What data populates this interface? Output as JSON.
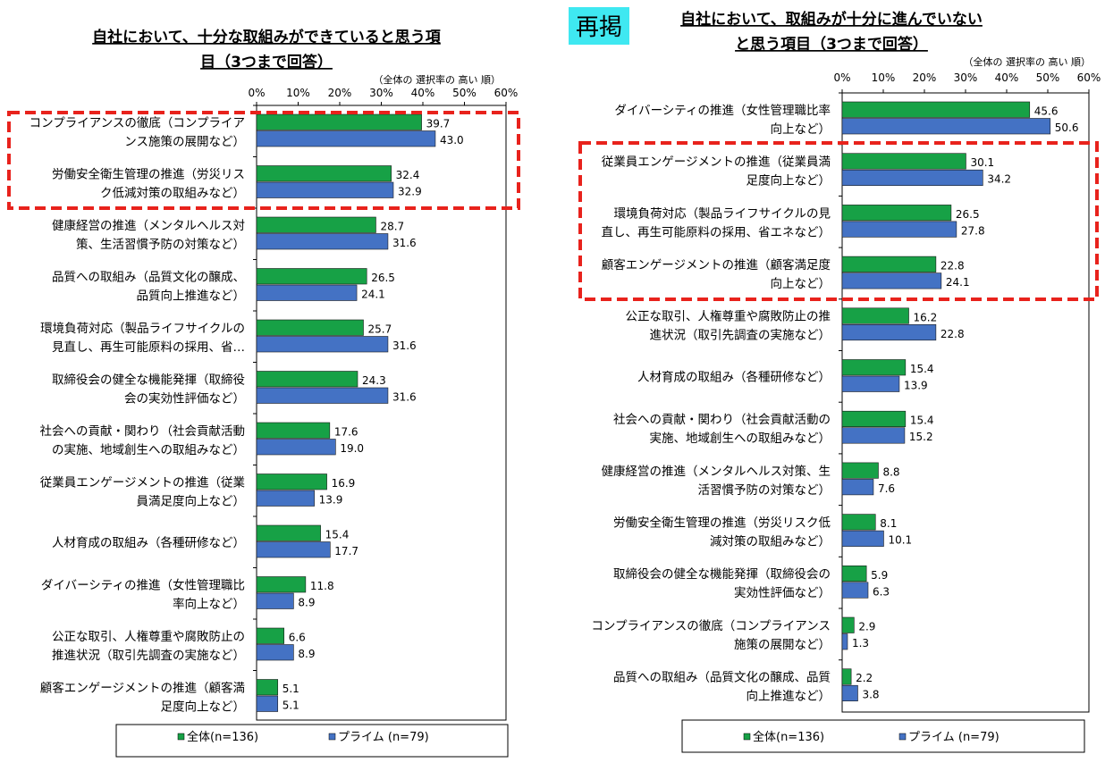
{
  "colors": {
    "all": "#17A146",
    "prime": "#4472C4",
    "highlight": "#E8221C",
    "badge_bg": "#3FE8F1"
  },
  "chart_data": [
    {
      "type": "bar",
      "orientation": "horizontal",
      "title_line1": "自社において、十分な取組みができていると思う項",
      "title_line2": "目（3つまで回答）",
      "note": "（全体の 選択率の 高い 順）",
      "xlim": [
        0,
        60
      ],
      "xticks": [
        "0%",
        "10%",
        "20%",
        "30%",
        "40%",
        "50%",
        "60%"
      ],
      "categories": [
        [
          "コンプライアンスの徹底（コンプライア",
          "ンス施策の展開など）"
        ],
        [
          "労働安全衛生管理の推進（労災リス",
          "ク低減対策の取組みなど）"
        ],
        [
          "健康経営の推進（メンタルヘルス対",
          "策、生活習慣予防の対策など）"
        ],
        [
          "品質への取組み（品質文化の醸成、",
          "品質向上推進など）"
        ],
        [
          "環境負荷対応（製品ライフサイクルの",
          "見直し、再生可能原料の採用、省…"
        ],
        [
          "取締役会の健全な機能発揮（取締役",
          "会の実効性評価など）"
        ],
        [
          "社会への貢献・関わり（社会貢献活動",
          "の実施、地域創生への取組みなど）"
        ],
        [
          "従業員エンゲージメントの推進（従業",
          "員満足度向上など）"
        ],
        [
          "人材育成の取組み（各種研修など）"
        ],
        [
          "ダイバーシティの推進（女性管理職比",
          "率向上など）"
        ],
        [
          "公正な取引、人権尊重や腐敗防止の",
          "推進状況（取引先調査の実施など）"
        ],
        [
          "顧客エンゲージメントの推進（顧客満",
          "足度向上など）"
        ]
      ],
      "series": [
        {
          "name": "全体(n=136)",
          "values": [
            39.7,
            32.4,
            28.7,
            26.5,
            25.7,
            24.3,
            17.6,
            16.9,
            15.4,
            11.8,
            6.6,
            5.1
          ],
          "labels": [
            "39.7",
            "32.4",
            "28.7",
            "26.5",
            "25.7",
            "24.3",
            "17.6",
            "16.9",
            "15.4",
            "11.8",
            "6.6",
            "5.1"
          ]
        },
        {
          "name": "プライム (n=79)",
          "values": [
            43.0,
            32.9,
            31.6,
            24.1,
            31.6,
            31.6,
            19.0,
            13.9,
            17.7,
            8.9,
            8.9,
            5.1
          ],
          "labels": [
            "43.0",
            "32.9",
            "31.6",
            "24.1",
            "31.6",
            "31.6",
            "19.0",
            "13.9",
            "17.7",
            "8.9",
            "8.9",
            "5.1"
          ]
        }
      ],
      "highlight_rows": [
        0,
        1
      ],
      "badge": ""
    },
    {
      "type": "bar",
      "orientation": "horizontal",
      "title_line1": "自社において、取組みが十分に進んでいない",
      "title_line2": "と思う項目（3つまで回答）",
      "note": "（全体の 選択率の 高い 順）",
      "xlim": [
        0,
        60
      ],
      "xticks": [
        "0%",
        "10%",
        "20%",
        "30%",
        "40%",
        "50%",
        "60%"
      ],
      "categories": [
        [
          "ダイバーシティの推進（女性管理職比率",
          "向上など）"
        ],
        [
          "従業員エンゲージメントの推進（従業員満",
          "足度向上など）"
        ],
        [
          "環境負荷対応（製品ライフサイクルの見",
          "直し、再生可能原料の採用、省エネなど）"
        ],
        [
          "顧客エンゲージメントの推進（顧客満足度",
          "向上など）"
        ],
        [
          "公正な取引、人権尊重や腐敗防止の推",
          "進状況（取引先調査の実施など）"
        ],
        [
          "人材育成の取組み（各種研修など）"
        ],
        [
          "社会への貢献・関わり（社会貢献活動の",
          "実施、地域創生への取組みなど）"
        ],
        [
          "健康経営の推進（メンタルヘルス対策、生",
          "活習慣予防の対策など）"
        ],
        [
          "労働安全衛生管理の推進（労災リスク低",
          "減対策の取組みなど）"
        ],
        [
          "取締役会の健全な機能発揮（取締役会の",
          "実効性評価など）"
        ],
        [
          "コンプライアンスの徹底（コンプライアンス",
          "施策の展開など）"
        ],
        [
          "品質への取組み（品質文化の醸成、品質",
          "向上推進など）"
        ]
      ],
      "series": [
        {
          "name": "全体(n=136)",
          "values": [
            45.6,
            30.1,
            26.5,
            22.8,
            16.2,
            15.4,
            15.4,
            8.8,
            8.1,
            5.9,
            2.9,
            2.2
          ],
          "labels": [
            "45.6",
            "30.1",
            "26.5",
            "22.8",
            "16.2",
            "15.4",
            "15.4",
            "8.8",
            "8.1",
            "5.9",
            "2.9",
            "2.2"
          ]
        },
        {
          "name": "プライム (n=79)",
          "values": [
            50.6,
            34.2,
            27.8,
            24.1,
            22.8,
            13.9,
            15.2,
            7.6,
            10.1,
            6.3,
            1.3,
            3.8
          ],
          "labels": [
            "50.6",
            "34.2",
            "27.8",
            "24.1",
            "22.8",
            "13.9",
            "15.2",
            "7.6",
            "10.1",
            "6.3",
            "1.3",
            "3.8"
          ]
        }
      ],
      "highlight_rows": [
        1,
        2,
        3
      ],
      "badge": "再掲"
    }
  ]
}
